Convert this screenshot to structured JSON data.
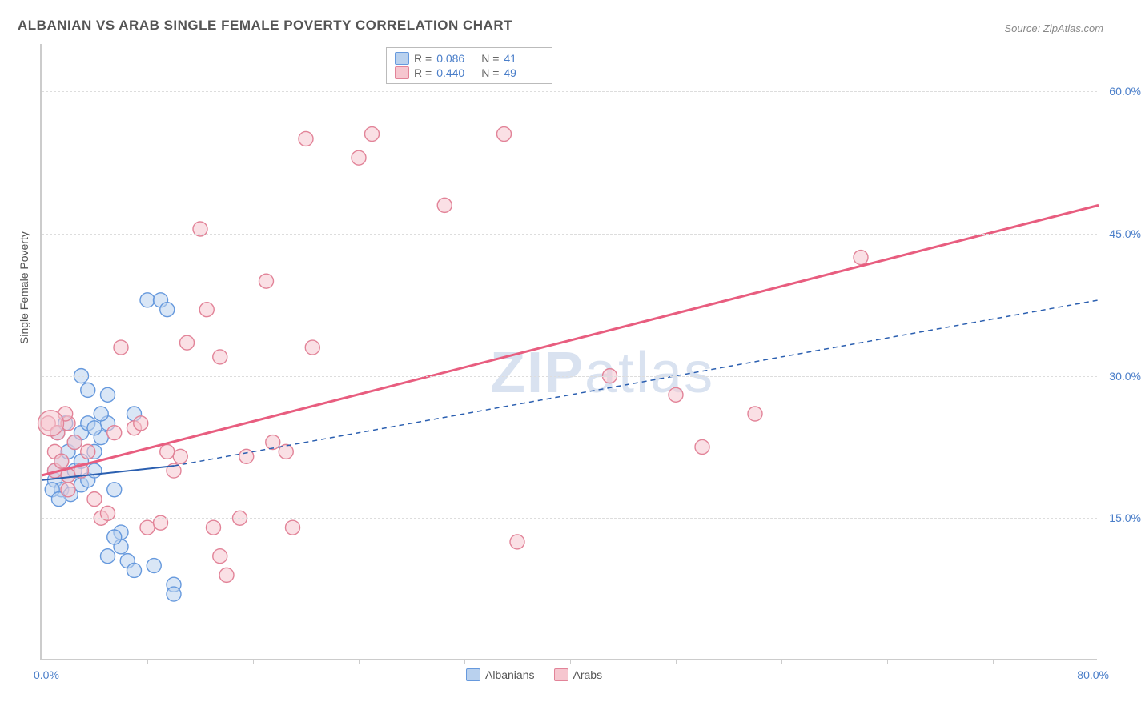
{
  "title": "ALBANIAN VS ARAB SINGLE FEMALE POVERTY CORRELATION CHART",
  "source": "Source: ZipAtlas.com",
  "ylabel": "Single Female Poverty",
  "watermark": {
    "bold": "ZIP",
    "thin": "atlas"
  },
  "chart": {
    "type": "scatter",
    "xlim": [
      0,
      80
    ],
    "ylim": [
      0,
      65
    ],
    "x_ticks_visible": {
      "min": "0.0%",
      "max": "80.0%"
    },
    "y_ticks": [
      {
        "v": 15,
        "label": "15.0%"
      },
      {
        "v": 30,
        "label": "30.0%"
      },
      {
        "v": 45,
        "label": "45.0%"
      },
      {
        "v": 60,
        "label": "60.0%"
      }
    ],
    "x_minor_ticks": [
      0,
      8,
      16,
      24,
      32,
      40,
      48,
      56,
      64,
      72,
      80
    ],
    "background_color": "#ffffff",
    "grid_color": "#dddddd",
    "axis_color": "#cccccc",
    "series": [
      {
        "name": "Albanians",
        "fill": "#b9d1ee",
        "stroke": "#6699dd",
        "fill_opacity": 0.55,
        "marker_r": 9,
        "trend": {
          "color": "#2b5fb0",
          "dash": "solid_then_dash",
          "solid_x": [
            0,
            10
          ],
          "solid_y": [
            19,
            20.5
          ],
          "dash_x": [
            10,
            80
          ],
          "dash_y": [
            20.5,
            38
          ],
          "width": 2
        },
        "stats": {
          "R": "0.086",
          "N": "41"
        },
        "points": [
          [
            1,
            19
          ],
          [
            1,
            20
          ],
          [
            1.5,
            21
          ],
          [
            1.5,
            18
          ],
          [
            2,
            19.5
          ],
          [
            2,
            22
          ],
          [
            2.5,
            20
          ],
          [
            2.5,
            23
          ],
          [
            3,
            18.5
          ],
          [
            3,
            21
          ],
          [
            3,
            24
          ],
          [
            3.5,
            25
          ],
          [
            3.5,
            19
          ],
          [
            4,
            20
          ],
          [
            4,
            22
          ],
          [
            4.5,
            23.5
          ],
          [
            5,
            25
          ],
          [
            5,
            28
          ],
          [
            5.5,
            18
          ],
          [
            6,
            13.5
          ],
          [
            6,
            12
          ],
          [
            6.5,
            10.5
          ],
          [
            7,
            9.5
          ],
          [
            7,
            26
          ],
          [
            8,
            38
          ],
          [
            8.5,
            10
          ],
          [
            9,
            38
          ],
          [
            9.5,
            37
          ],
          [
            10,
            8
          ],
          [
            10,
            7
          ],
          [
            4,
            24.5
          ],
          [
            4.5,
            26
          ],
          [
            1.2,
            24
          ],
          [
            1.8,
            25
          ],
          [
            2.2,
            17.5
          ],
          [
            5,
            11
          ],
          [
            5.5,
            13
          ],
          [
            3,
            30
          ],
          [
            3.5,
            28.5
          ],
          [
            0.8,
            18
          ],
          [
            1.3,
            17
          ]
        ]
      },
      {
        "name": "Arabs",
        "fill": "#f6c6cf",
        "stroke": "#e28398",
        "fill_opacity": 0.55,
        "marker_r": 9,
        "trend": {
          "color": "#e85d7f",
          "dash": "solid",
          "x": [
            0,
            80
          ],
          "y": [
            19.5,
            48
          ],
          "width": 3
        },
        "stats": {
          "R": "0.440",
          "N": "49"
        },
        "points": [
          [
            1,
            20
          ],
          [
            1,
            22
          ],
          [
            1.5,
            21
          ],
          [
            2,
            18
          ],
          [
            2,
            19.5
          ],
          [
            2,
            25
          ],
          [
            2.5,
            23
          ],
          [
            3,
            20
          ],
          [
            3.5,
            22
          ],
          [
            4,
            17
          ],
          [
            4.5,
            15
          ],
          [
            5,
            15.5
          ],
          [
            5.5,
            24
          ],
          [
            6,
            33
          ],
          [
            7,
            24.5
          ],
          [
            7.5,
            25
          ],
          [
            8,
            14
          ],
          [
            9,
            14.5
          ],
          [
            9.5,
            22
          ],
          [
            10,
            20
          ],
          [
            10.5,
            21.5
          ],
          [
            11,
            33.5
          ],
          [
            12,
            45.5
          ],
          [
            12.5,
            37
          ],
          [
            13,
            14
          ],
          [
            13.5,
            32
          ],
          [
            13.5,
            11
          ],
          [
            14,
            9
          ],
          [
            15,
            15
          ],
          [
            15.5,
            21.5
          ],
          [
            17,
            40
          ],
          [
            17.5,
            23
          ],
          [
            18.5,
            22
          ],
          [
            19,
            14
          ],
          [
            20,
            55
          ],
          [
            20.5,
            33
          ],
          [
            24,
            53
          ],
          [
            25,
            55.5
          ],
          [
            30.5,
            48
          ],
          [
            35,
            55.5
          ],
          [
            36,
            12.5
          ],
          [
            43,
            30
          ],
          [
            48,
            28
          ],
          [
            50,
            22.5
          ],
          [
            54,
            26
          ],
          [
            62,
            42.5
          ],
          [
            0.5,
            25
          ],
          [
            1.2,
            24
          ],
          [
            1.8,
            26
          ]
        ],
        "big_point": {
          "x": 0.7,
          "y": 25,
          "r": 16
        }
      }
    ]
  },
  "legend_bottom": [
    {
      "label": "Albanians",
      "fill": "#b9d1ee",
      "stroke": "#6699dd"
    },
    {
      "label": "Arabs",
      "fill": "#f6c6cf",
      "stroke": "#e28398"
    }
  ]
}
